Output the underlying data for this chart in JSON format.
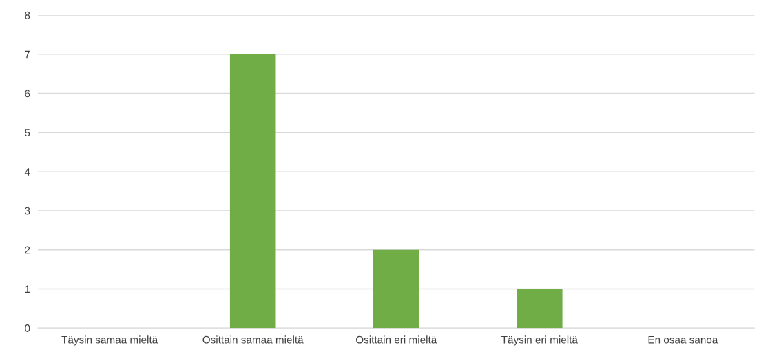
{
  "chart_data": {
    "type": "bar",
    "categories": [
      "Täysin samaa mieltä",
      "Osittain samaa mieltä",
      "Osittain eri mieltä",
      "Täysin eri mieltä",
      "En osaa sanoa"
    ],
    "values": [
      0,
      7,
      2,
      1,
      0
    ],
    "color": "#70ad47",
    "ylim": [
      0,
      8
    ],
    "yticks": [
      0,
      1,
      2,
      3,
      4,
      5,
      6,
      7,
      8
    ],
    "grid": "y"
  }
}
